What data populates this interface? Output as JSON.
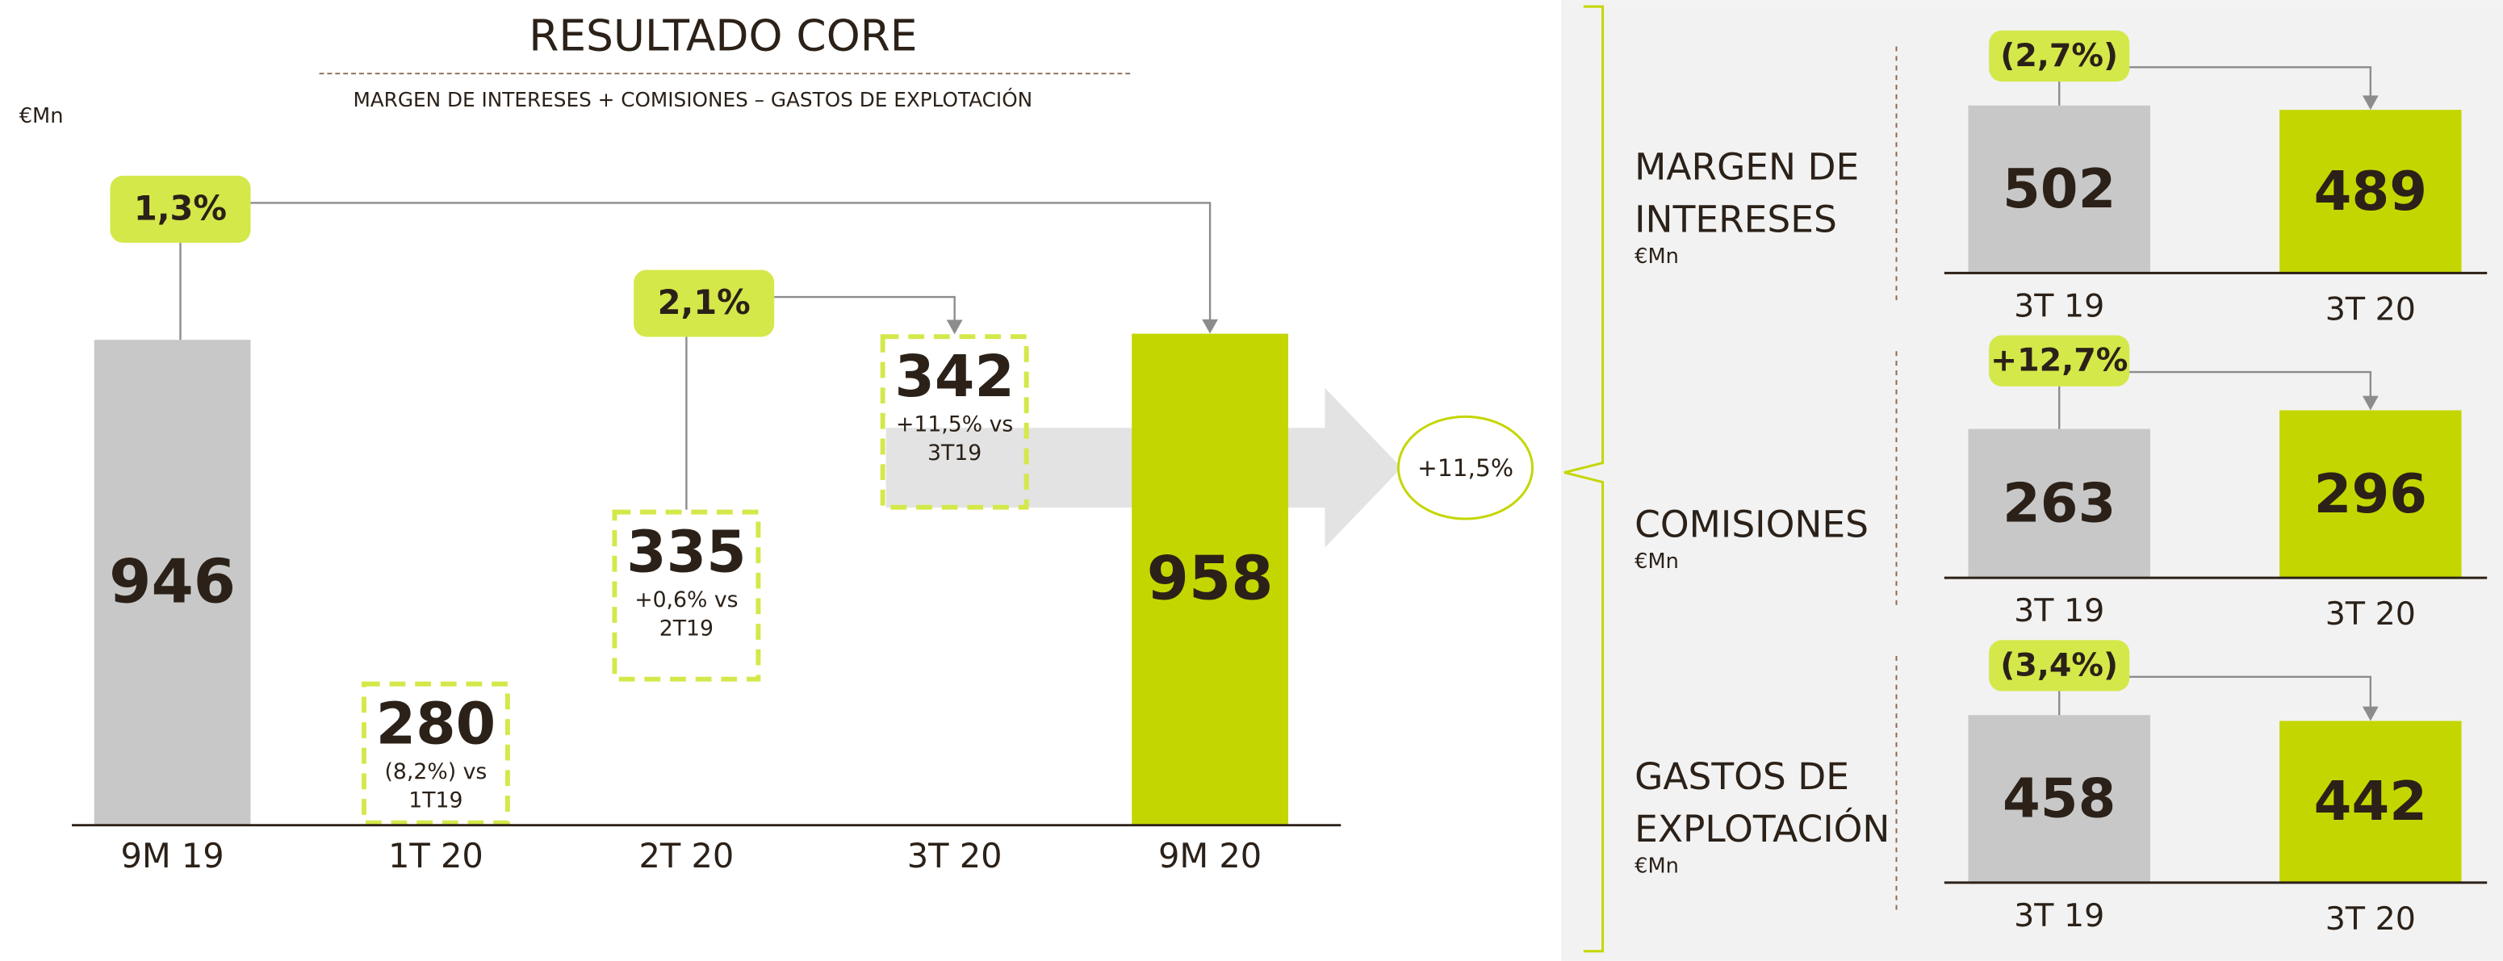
{
  "chart_data": [
    {
      "type": "waterfall",
      "title": "RESULTADO CORE",
      "subtitle": "MARGEN DE INTERESES + COMISIONES – GASTOS DE EXPLOTACIÓN",
      "unit": "€Mn",
      "categories": [
        "9M 19",
        "1T 20",
        "2T 20",
        "3T 20",
        "9M 20"
      ],
      "values": [
        946,
        280,
        335,
        342,
        958
      ],
      "value_notes": [
        null,
        [
          "(8,2%) vs",
          "1T19"
        ],
        [
          "+0,6% vs",
          "2T19"
        ],
        [
          "+11,5% vs",
          "3T19"
        ],
        null
      ],
      "colors": [
        "#c8c8c8",
        "#d4e84a",
        "#d4e84a",
        "#d4e84a",
        "#c4d600"
      ],
      "annotations": {
        "total_change": "1,3%",
        "quarter_change": "2,1%",
        "growth": "+11,5%"
      }
    },
    {
      "type": "bar",
      "title": [
        "MARGEN DE",
        "INTERESES"
      ],
      "unit": "€Mn",
      "categories": [
        "3T 19",
        "3T 20"
      ],
      "values": [
        502,
        489
      ],
      "colors": [
        "#c8c8c8",
        "#c4d600"
      ],
      "change": "(2,7%)"
    },
    {
      "type": "bar",
      "title": [
        "COMISIONES"
      ],
      "unit": "€Mn",
      "categories": [
        "3T 19",
        "3T 20"
      ],
      "values": [
        263,
        296
      ],
      "colors": [
        "#c8c8c8",
        "#c4d600"
      ],
      "change": "+12,7%"
    },
    {
      "type": "bar",
      "title": [
        "GASTOS DE",
        "EXPLOTACIÓN"
      ],
      "unit": "€Mn",
      "categories": [
        "3T 19",
        "3T 20"
      ],
      "values": [
        458,
        442
      ],
      "colors": [
        "#c8c8c8",
        "#c4d600"
      ],
      "change": "(3,4%)"
    }
  ]
}
